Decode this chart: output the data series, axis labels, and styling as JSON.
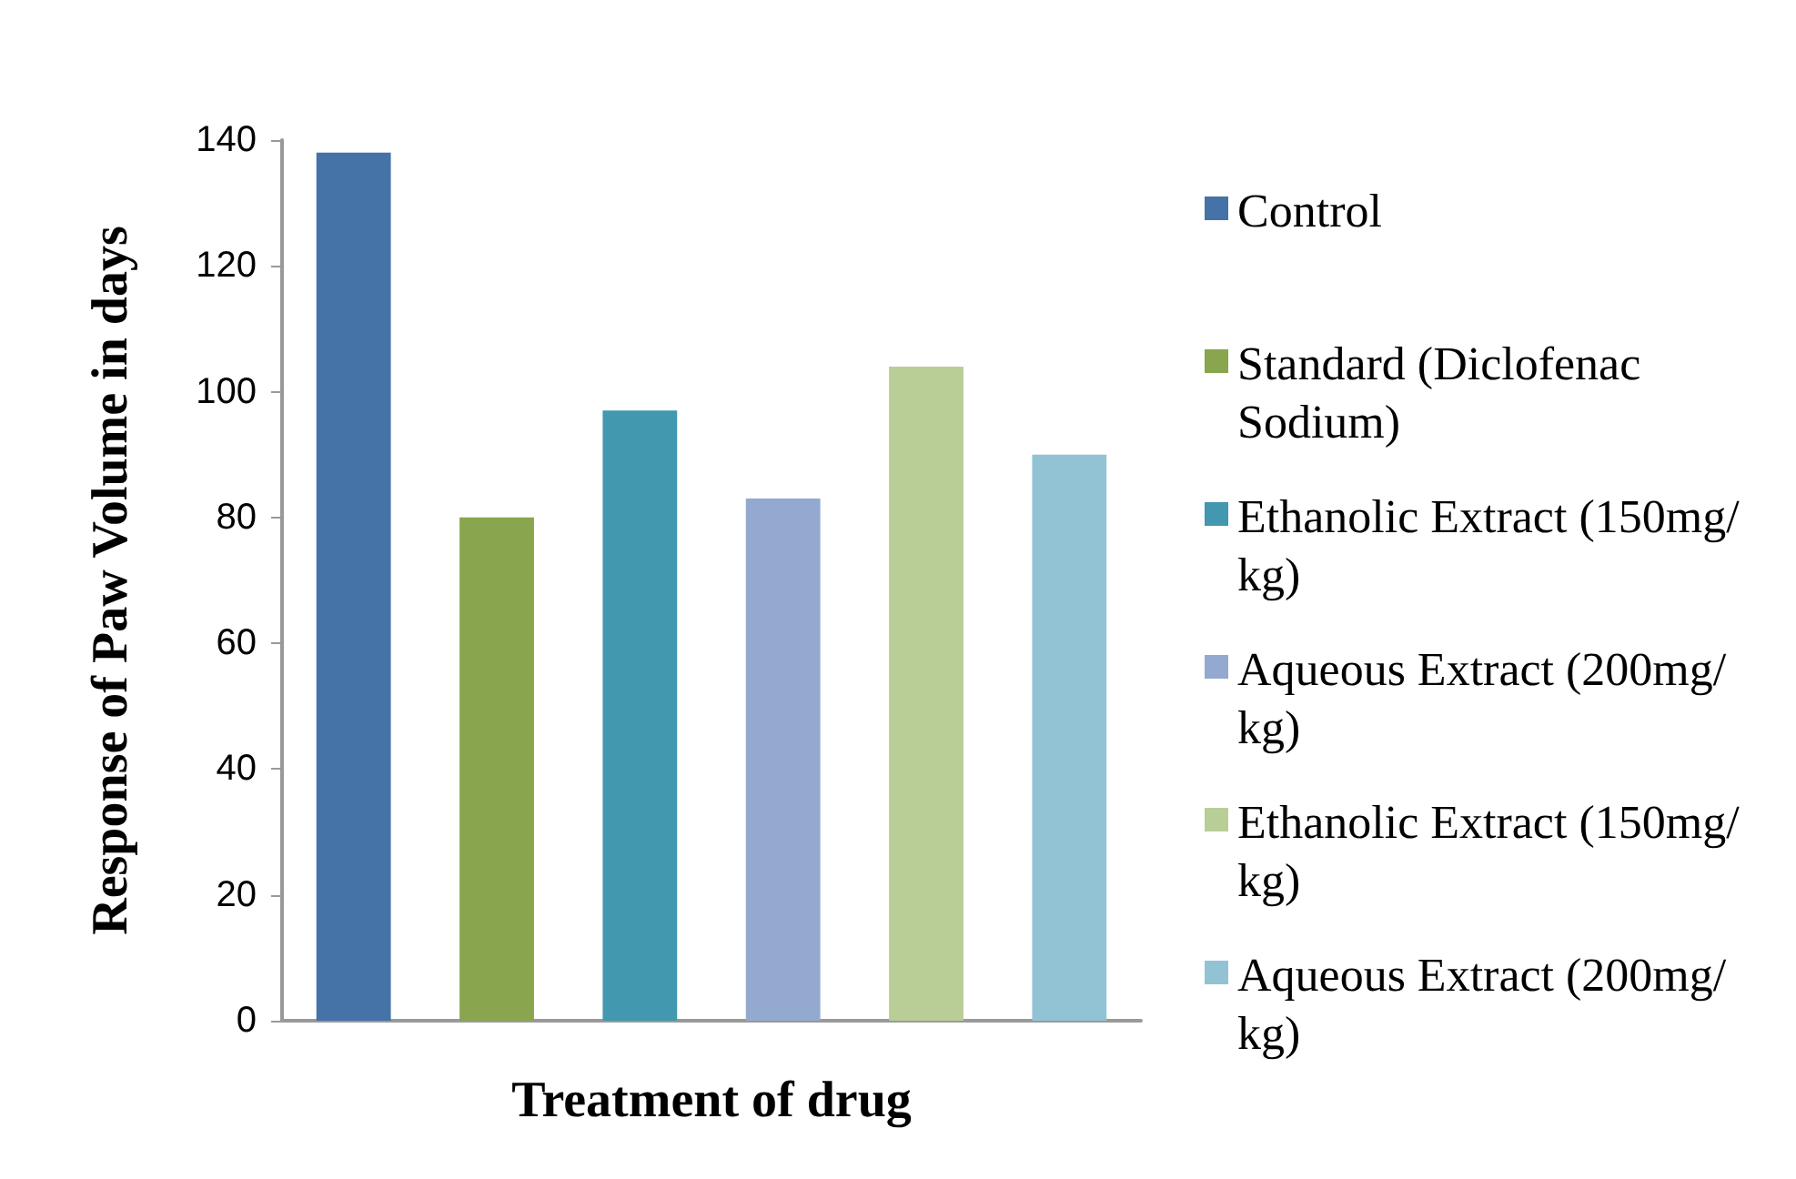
{
  "chart_data": {
    "type": "bar",
    "xlabel": "Treatment of drug",
    "ylabel": "Response of Paw Volume in days",
    "categories": [
      null,
      null,
      null,
      null,
      null,
      null
    ],
    "series": [
      {
        "name": "Control",
        "color": "#4572a7",
        "values": [
          138,
          null,
          null,
          null,
          null,
          null
        ]
      },
      {
        "name": "Standard (Diclofenac Sodium)",
        "color": "#89a54e",
        "values": [
          null,
          80,
          null,
          null,
          null,
          null
        ]
      },
      {
        "name": "Ethanolic Extract (150mg/kg)",
        "color": "#4198af",
        "values": [
          null,
          null,
          97,
          null,
          null,
          null
        ]
      },
      {
        "name": "Aqueous Extract (200mg/kg)",
        "color": "#93a9cf",
        "values": [
          null,
          null,
          null,
          83,
          null,
          null
        ]
      },
      {
        "name": "Ethanolic Extract (150mg/kg)",
        "color": "#b9cd96",
        "values": [
          null,
          null,
          null,
          null,
          104,
          null
        ]
      },
      {
        "name": "Aqueous Extract (200mg/kg)",
        "color": "#92c3d4",
        "values": [
          null,
          null,
          null,
          null,
          null,
          90
        ]
      }
    ],
    "ylim": [
      0,
      140
    ],
    "yticks": [
      0,
      20,
      40,
      60,
      80,
      100,
      120,
      140
    ],
    "grid": false,
    "legend": "right"
  }
}
